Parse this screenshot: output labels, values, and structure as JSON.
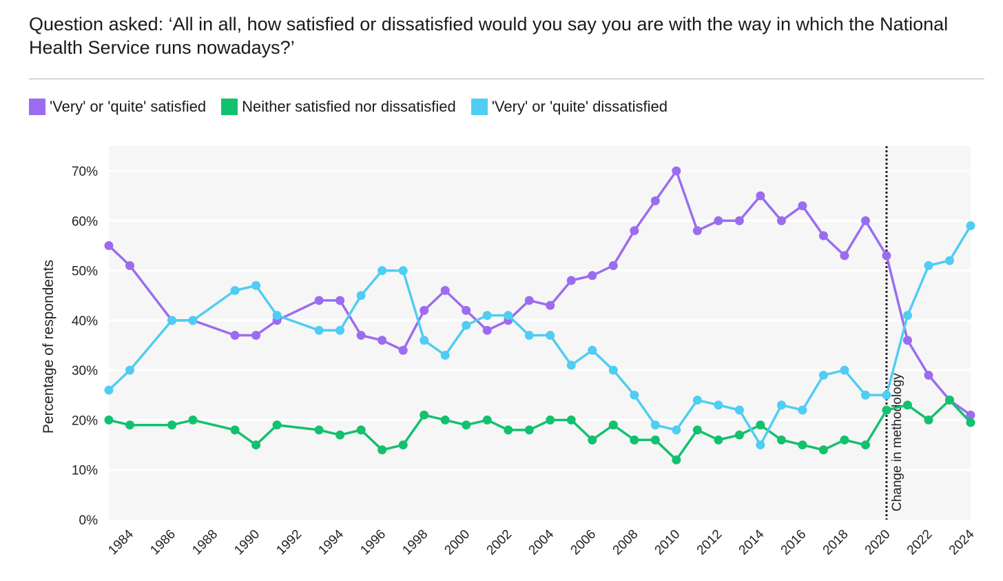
{
  "header": {
    "question": "Question asked: ‘All in all, how satisfied or dissatisfied would you say you are with the way in which the National Health Service runs nowadays?’"
  },
  "colors": {
    "satisfied": "#9b6cf0",
    "neither": "#12c16e",
    "dissatisfied": "#4fcdf2",
    "plot_bg": "#f6f6f6",
    "grid": "#ffffff"
  },
  "chart_data": {
    "type": "line",
    "title": "",
    "xlabel": "",
    "ylabel": "Percentage of respondents",
    "xlim": [
      1983,
      2024
    ],
    "ylim": [
      0,
      70
    ],
    "yticks": [
      0,
      10,
      20,
      30,
      40,
      50,
      60,
      70
    ],
    "ytick_labels": [
      "0%",
      "10%",
      "20%",
      "30%",
      "40%",
      "50%",
      "60%",
      "70%"
    ],
    "xticks": [
      1984,
      1986,
      1988,
      1990,
      1992,
      1994,
      1996,
      1998,
      2000,
      2002,
      2004,
      2006,
      2008,
      2010,
      2012,
      2014,
      2016,
      2018,
      2020,
      2022,
      2024
    ],
    "xtick_labels": [
      "1984",
      "1986",
      "1988",
      "1990",
      "1992",
      "1994",
      "1996",
      "1998",
      "2000",
      "2002",
      "2004",
      "2006",
      "2008",
      "2010",
      "2012",
      "2014",
      "2016",
      "2018",
      "2020",
      "2022",
      "2024"
    ],
    "legend_position": "top-left",
    "grid": true,
    "annotation": {
      "x": 2020,
      "label": "Change in methodology"
    },
    "series": [
      {
        "name": "'Very' or 'quite' satisfied",
        "color": "#9b6cf0",
        "points": [
          [
            1983,
            55
          ],
          [
            1984,
            51
          ],
          [
            1986,
            40
          ],
          [
            1987,
            40
          ],
          [
            1989,
            37
          ],
          [
            1990,
            37
          ],
          [
            1991,
            40
          ],
          [
            1993,
            44
          ],
          [
            1994,
            44
          ],
          [
            1995,
            37
          ],
          [
            1996,
            36
          ],
          [
            1997,
            34
          ],
          [
            1998,
            42
          ],
          [
            1999,
            46
          ],
          [
            2000,
            42
          ],
          [
            2001,
            38
          ],
          [
            2002,
            40
          ],
          [
            2003,
            44
          ],
          [
            2004,
            43
          ],
          [
            2005,
            48
          ],
          [
            2006,
            49
          ],
          [
            2007,
            51
          ],
          [
            2008,
            58
          ],
          [
            2009,
            64
          ],
          [
            2010,
            70
          ],
          [
            2011,
            58
          ],
          [
            2012,
            60
          ],
          [
            2013,
            60
          ],
          [
            2014,
            65
          ],
          [
            2015,
            60
          ],
          [
            2016,
            63
          ],
          [
            2017,
            57
          ],
          [
            2018,
            53
          ],
          [
            2019,
            60
          ],
          [
            2020,
            53
          ],
          [
            2021,
            36
          ],
          [
            2022,
            29
          ],
          [
            2023,
            24
          ],
          [
            2024,
            21
          ]
        ]
      },
      {
        "name": "Neither satisfied nor dissatisfied",
        "color": "#12c16e",
        "points": [
          [
            1983,
            20
          ],
          [
            1984,
            19
          ],
          [
            1986,
            19
          ],
          [
            1987,
            20
          ],
          [
            1989,
            18
          ],
          [
            1990,
            15
          ],
          [
            1991,
            19
          ],
          [
            1993,
            18
          ],
          [
            1994,
            17
          ],
          [
            1995,
            18
          ],
          [
            1996,
            14
          ],
          [
            1997,
            15
          ],
          [
            1998,
            21
          ],
          [
            1999,
            20
          ],
          [
            2000,
            19
          ],
          [
            2001,
            20
          ],
          [
            2002,
            18
          ],
          [
            2003,
            18
          ],
          [
            2004,
            20
          ],
          [
            2005,
            20
          ],
          [
            2006,
            16
          ],
          [
            2007,
            19
          ],
          [
            2008,
            16
          ],
          [
            2009,
            16
          ],
          [
            2010,
            12
          ],
          [
            2011,
            18
          ],
          [
            2012,
            16
          ],
          [
            2013,
            17
          ],
          [
            2014,
            19
          ],
          [
            2015,
            16
          ],
          [
            2016,
            15
          ],
          [
            2017,
            14
          ],
          [
            2018,
            16
          ],
          [
            2019,
            15
          ],
          [
            2020,
            22
          ],
          [
            2021,
            23
          ],
          [
            2022,
            20
          ],
          [
            2023,
            24
          ],
          [
            2024,
            19.5
          ]
        ]
      },
      {
        "name": "'Very' or 'quite' dissatisfied",
        "color": "#4fcdf2",
        "points": [
          [
            1983,
            26
          ],
          [
            1984,
            30
          ],
          [
            1986,
            40
          ],
          [
            1987,
            40
          ],
          [
            1989,
            46
          ],
          [
            1990,
            47
          ],
          [
            1991,
            41
          ],
          [
            1993,
            38
          ],
          [
            1994,
            38
          ],
          [
            1995,
            45
          ],
          [
            1996,
            50
          ],
          [
            1997,
            50
          ],
          [
            1998,
            36
          ],
          [
            1999,
            33
          ],
          [
            2000,
            39
          ],
          [
            2001,
            41
          ],
          [
            2002,
            41
          ],
          [
            2003,
            37
          ],
          [
            2004,
            37
          ],
          [
            2005,
            31
          ],
          [
            2006,
            34
          ],
          [
            2007,
            30
          ],
          [
            2008,
            25
          ],
          [
            2009,
            19
          ],
          [
            2010,
            18
          ],
          [
            2011,
            24
          ],
          [
            2012,
            23
          ],
          [
            2013,
            22
          ],
          [
            2014,
            15
          ],
          [
            2015,
            23
          ],
          [
            2016,
            22
          ],
          [
            2017,
            29
          ],
          [
            2018,
            30
          ],
          [
            2019,
            25
          ],
          [
            2020,
            25
          ],
          [
            2021,
            41
          ],
          [
            2022,
            51
          ],
          [
            2023,
            52
          ],
          [
            2024,
            59
          ]
        ]
      }
    ]
  }
}
